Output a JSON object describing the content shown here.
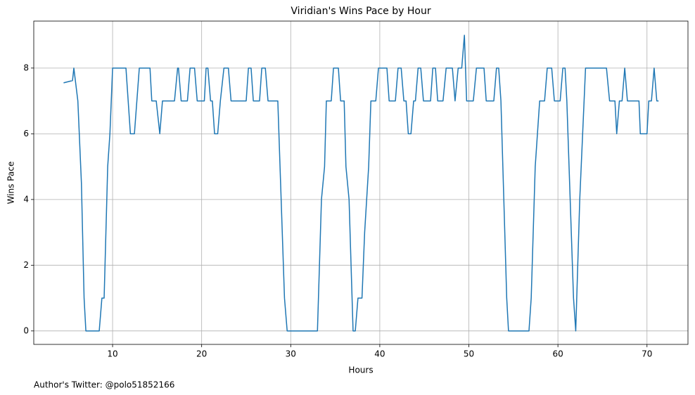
{
  "chart_data": {
    "type": "line",
    "title": "Viridian's Wins Pace by Hour",
    "xlabel": "Hours",
    "ylabel": "Wins Pace",
    "footer": "Author's Twitter: @polo51852166",
    "x": [
      4.5,
      5.5,
      5.65,
      6.1,
      6.5,
      6.8,
      7.0,
      8.5,
      8.8,
      9.05,
      9.45,
      9.7,
      10.0,
      11.5,
      12.0,
      12.45,
      13.0,
      14.2,
      14.4,
      14.9,
      15.3,
      15.6,
      16.95,
      17.3,
      17.4,
      17.7,
      18.4,
      18.7,
      19.2,
      19.5,
      20.3,
      20.5,
      20.7,
      21.0,
      21.2,
      21.45,
      21.8,
      22.1,
      22.5,
      23.0,
      23.3,
      25.0,
      25.25,
      25.55,
      25.8,
      26.5,
      26.75,
      27.15,
      27.45,
      28.55,
      29.3,
      29.6,
      33.0,
      33.45,
      33.8,
      34.0,
      34.55,
      34.8,
      35.35,
      35.6,
      36.0,
      36.2,
      36.55,
      37.0,
      37.25,
      37.55,
      38.0,
      38.3,
      38.75,
      39.0,
      39.55,
      39.85,
      40.8,
      41.05,
      41.75,
      42.05,
      42.4,
      42.7,
      42.95,
      43.2,
      43.5,
      43.8,
      44.0,
      44.3,
      44.6,
      44.9,
      45.7,
      45.95,
      46.25,
      46.5,
      47.1,
      47.45,
      48.15,
      48.45,
      48.8,
      49.2,
      49.5,
      49.75,
      50.5,
      50.85,
      51.7,
      51.95,
      52.8,
      53.1,
      53.35,
      53.6,
      54.25,
      54.45,
      56.75,
      57.0,
      57.45,
      57.95,
      58.5,
      58.8,
      59.3,
      59.6,
      60.25,
      60.55,
      60.8,
      61.0,
      61.75,
      62.0,
      62.45,
      63.1,
      65.45,
      65.8,
      66.4,
      66.6,
      66.9,
      67.2,
      67.5,
      67.8,
      69.1,
      69.25,
      70.0,
      70.2,
      70.5,
      70.8,
      71.1,
      71.3
    ],
    "series": [
      {
        "name": "Wins Pace",
        "color": "#1f77b4",
        "values": [
          7.55,
          7.62,
          8,
          7,
          4.5,
          1,
          0,
          0,
          1,
          1,
          5,
          6,
          8,
          8,
          6,
          6,
          8,
          8,
          7,
          7,
          6,
          7,
          7,
          8,
          8,
          7,
          7,
          8,
          8,
          7,
          7,
          8,
          8,
          7,
          7,
          6,
          6,
          7,
          8,
          8,
          7,
          7,
          8,
          8,
          7,
          7,
          8,
          8,
          7,
          7,
          1,
          0,
          0,
          4,
          5,
          7,
          7,
          8,
          8,
          7,
          7,
          5,
          4,
          0,
          0,
          1,
          1,
          3,
          5,
          7,
          7,
          8,
          8,
          7,
          7,
          8,
          8,
          7,
          7,
          6,
          6,
          7,
          7,
          8,
          8,
          7,
          7,
          8,
          8,
          7,
          7,
          8,
          8,
          7,
          8,
          8,
          9,
          7,
          7,
          8,
          8,
          7,
          7,
          8,
          8,
          7,
          1,
          0,
          0,
          1,
          5,
          7,
          7,
          8,
          8,
          7,
          7,
          8,
          8,
          7,
          1,
          0,
          4,
          8,
          8,
          7,
          7,
          6,
          7,
          7,
          8,
          7,
          7,
          6,
          6,
          7,
          7,
          8,
          7,
          7
        ]
      }
    ],
    "xlim": [
      1.15,
      74.6
    ],
    "ylim": [
      -0.41,
      9.43
    ],
    "xticks": [
      10,
      20,
      30,
      40,
      50,
      60,
      70
    ],
    "yticks": [
      0,
      2,
      4,
      6,
      8
    ],
    "grid": true
  }
}
